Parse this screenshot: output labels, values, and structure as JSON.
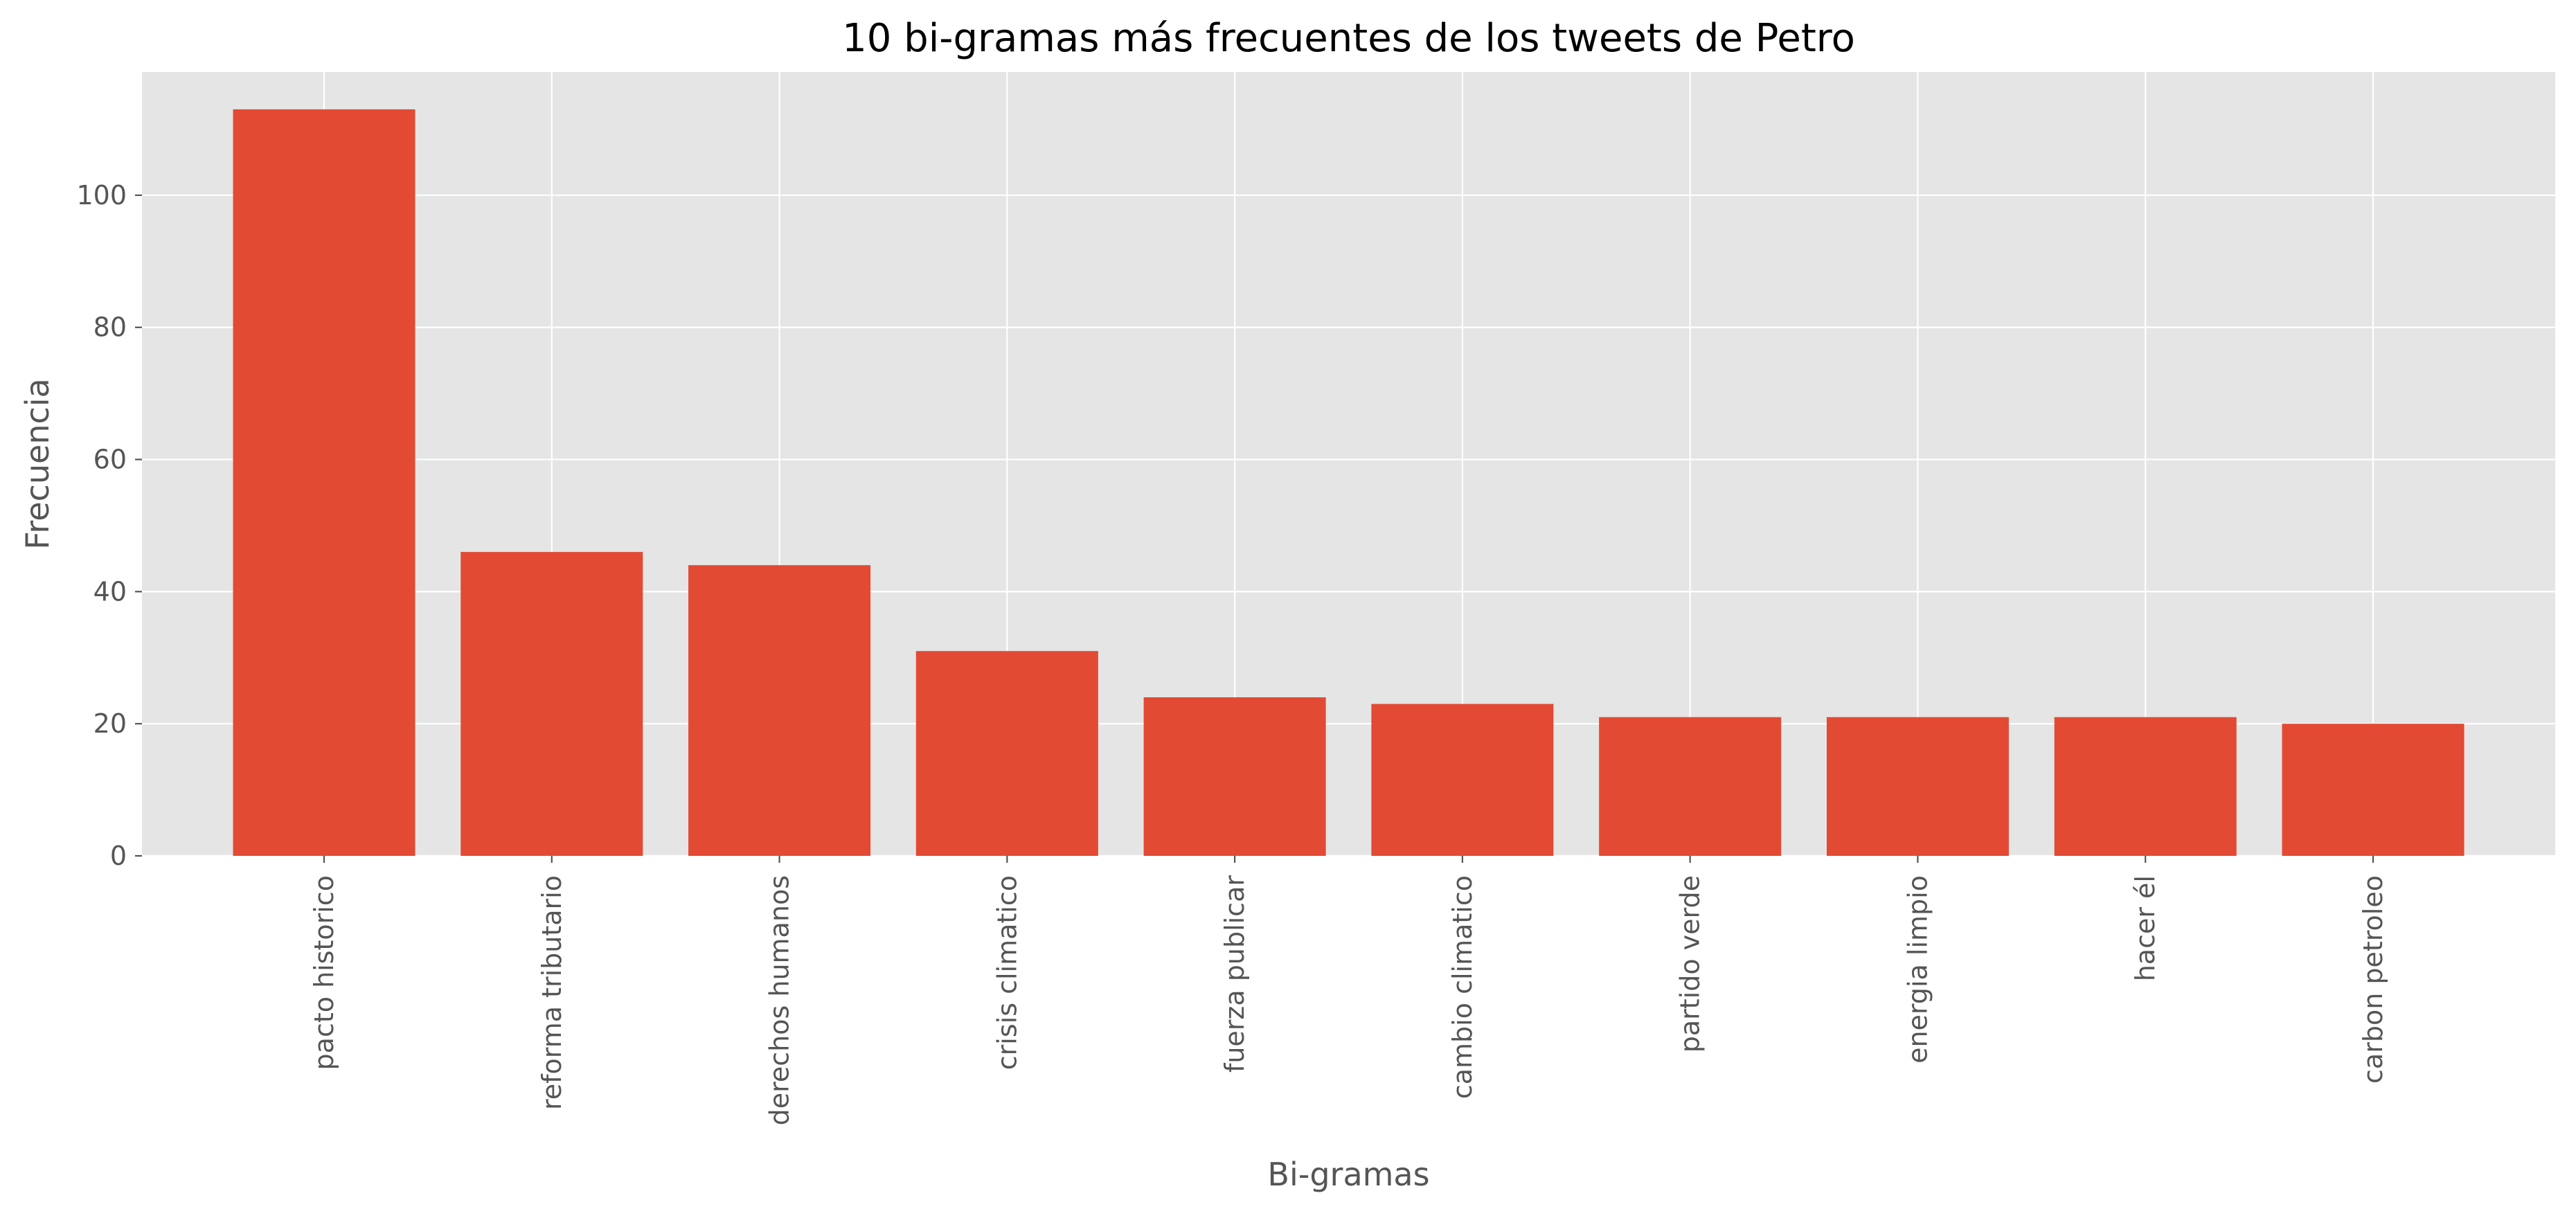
{
  "chart_data": {
    "type": "bar",
    "title": "10 bi-gramas más frecuentes de los tweets de Petro",
    "xlabel": "Bi-gramas",
    "ylabel": "Frecuencia",
    "categories": [
      "pacto historico",
      "reforma tributario",
      "derechos humanos",
      "crisis climatico",
      "fuerza publicar",
      "cambio climatico",
      "partido verde",
      "energia limpio",
      "hacer él",
      "carbon petroleo"
    ],
    "values": [
      113,
      46,
      44,
      31,
      24,
      23,
      21,
      21,
      21,
      20
    ],
    "ylim": [
      0,
      118.65
    ],
    "yticks": [
      0,
      20,
      40,
      60,
      80,
      100
    ],
    "grid": true,
    "legend": "none",
    "colors": {
      "bar": "#E24A33",
      "plot_background": "#E5E5E5",
      "grid": "#FFFFFF",
      "text": "#555555",
      "title": "#000000"
    }
  }
}
